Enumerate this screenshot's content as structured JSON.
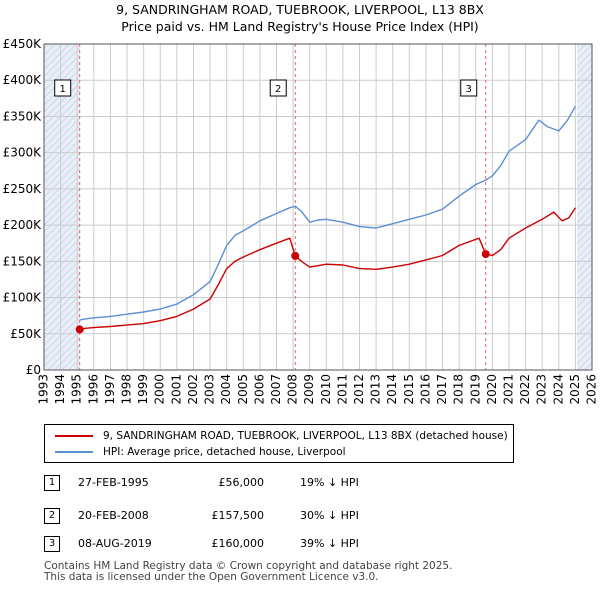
{
  "title_line_1": "9, SANDRINGHAM ROAD, TUEBROOK, LIVERPOOL, L13 8BX",
  "title_line_2": "Price paid vs. HM Land Registry's House Price Index (HPI)",
  "colors": {
    "price_paid": "#cc0000",
    "hpi": "#5b8fd4",
    "shading": "#e8eef8"
  },
  "chart_data": {
    "type": "line",
    "xlim": [
      1993,
      2026
    ],
    "ylim": [
      0,
      450000
    ],
    "x_ticks": [
      1993,
      1994,
      1995,
      1996,
      1997,
      1998,
      1999,
      2000,
      2001,
      2002,
      2003,
      2004,
      2005,
      2006,
      2007,
      2008,
      2009,
      2010,
      2011,
      2012,
      2013,
      2014,
      2015,
      2016,
      2017,
      2018,
      2019,
      2020,
      2021,
      2022,
      2023,
      2024,
      2025,
      2026
    ],
    "y_ticks": [
      {
        "value": 0,
        "label": "£0"
      },
      {
        "value": 50000,
        "label": "£50K"
      },
      {
        "value": 100000,
        "label": "£100K"
      },
      {
        "value": 150000,
        "label": "£150K"
      },
      {
        "value": 200000,
        "label": "£200K"
      },
      {
        "value": 250000,
        "label": "£250K"
      },
      {
        "value": 300000,
        "label": "£300K"
      },
      {
        "value": 350000,
        "label": "£350K"
      },
      {
        "value": 400000,
        "label": "£400K"
      },
      {
        "value": 450000,
        "label": "£450K"
      }
    ],
    "hatched_regions": [
      [
        1993,
        1995.15
      ],
      [
        2025.1,
        2026
      ]
    ],
    "series": [
      {
        "name": "9, SANDRINGHAM ROAD, TUEBROOK, LIVERPOOL, L13 8BX (detached house)",
        "points": [
          [
            1995.15,
            56000
          ],
          [
            1995.5,
            57500
          ],
          [
            1996,
            58500
          ],
          [
            1997,
            60000
          ],
          [
            1998,
            62000
          ],
          [
            1999,
            64000
          ],
          [
            2000,
            68000
          ],
          [
            2001,
            74000
          ],
          [
            2002,
            84000
          ],
          [
            2003,
            98000
          ],
          [
            2003.5,
            118000
          ],
          [
            2004,
            140000
          ],
          [
            2004.5,
            150000
          ],
          [
            2005,
            156000
          ],
          [
            2006,
            166000
          ],
          [
            2007,
            175000
          ],
          [
            2007.8,
            182000
          ],
          [
            2008.13,
            157500
          ],
          [
            2008.5,
            150000
          ],
          [
            2009,
            142000
          ],
          [
            2009.5,
            144000
          ],
          [
            2010,
            146000
          ],
          [
            2011,
            145000
          ],
          [
            2012,
            140000
          ],
          [
            2013,
            139000
          ],
          [
            2014,
            142000
          ],
          [
            2015,
            146000
          ],
          [
            2016,
            152000
          ],
          [
            2017,
            158000
          ],
          [
            2018,
            172000
          ],
          [
            2019.2,
            182000
          ],
          [
            2019.6,
            160000
          ],
          [
            2020,
            158000
          ],
          [
            2020.5,
            166000
          ],
          [
            2021,
            182000
          ],
          [
            2022,
            196000
          ],
          [
            2023,
            208000
          ],
          [
            2023.7,
            218000
          ],
          [
            2024.2,
            206000
          ],
          [
            2024.6,
            210000
          ],
          [
            2025,
            224000
          ]
        ]
      },
      {
        "name": "HPI: Average price, detached house, Liverpool",
        "points": [
          [
            1995.15,
            69000
          ],
          [
            1995.5,
            70500
          ],
          [
            1996,
            72000
          ],
          [
            1997,
            74000
          ],
          [
            1998,
            77000
          ],
          [
            1999,
            80000
          ],
          [
            2000,
            84000
          ],
          [
            2001,
            91000
          ],
          [
            2002,
            104000
          ],
          [
            2003,
            122000
          ],
          [
            2003.5,
            146000
          ],
          [
            2004,
            172000
          ],
          [
            2004.5,
            186000
          ],
          [
            2005,
            192000
          ],
          [
            2006,
            206000
          ],
          [
            2007,
            216000
          ],
          [
            2007.8,
            224000
          ],
          [
            2008.13,
            226000
          ],
          [
            2008.5,
            219000
          ],
          [
            2009,
            204000
          ],
          [
            2009.5,
            207000
          ],
          [
            2010,
            208000
          ],
          [
            2011,
            204000
          ],
          [
            2012,
            198000
          ],
          [
            2013,
            196000
          ],
          [
            2014,
            202000
          ],
          [
            2015,
            208000
          ],
          [
            2016,
            214000
          ],
          [
            2017,
            222000
          ],
          [
            2018,
            240000
          ],
          [
            2019,
            256000
          ],
          [
            2019.6,
            262000
          ],
          [
            2020,
            268000
          ],
          [
            2020.5,
            282000
          ],
          [
            2021,
            302000
          ],
          [
            2022,
            318000
          ],
          [
            2022.8,
            345000
          ],
          [
            2023.3,
            336000
          ],
          [
            2024,
            330000
          ],
          [
            2024.5,
            344000
          ],
          [
            2025,
            364000
          ]
        ]
      }
    ],
    "sales": [
      {
        "label": "1",
        "x": 1995.15,
        "value": 56000
      },
      {
        "label": "2",
        "x": 2008.13,
        "value": 157500
      },
      {
        "label": "3",
        "x": 2019.6,
        "value": 160000
      }
    ]
  },
  "legend": {
    "price_paid": "9, SANDRINGHAM ROAD, TUEBROOK, LIVERPOOL, L13 8BX (detached house)",
    "hpi": "HPI: Average price, detached house, Liverpool"
  },
  "sales_table": [
    {
      "num": "1",
      "date": "27-FEB-1995",
      "price": "£56,000",
      "hpi": "19% ↓ HPI"
    },
    {
      "num": "2",
      "date": "20-FEB-2008",
      "price": "£157,500",
      "hpi": "30% ↓ HPI"
    },
    {
      "num": "3",
      "date": "08-AUG-2019",
      "price": "£160,000",
      "hpi": "39% ↓ HPI"
    }
  ],
  "footer_line_1": "Contains HM Land Registry data © Crown copyright and database right 2025.",
  "footer_line_2": "This data is licensed under the Open Government Licence v3.0."
}
